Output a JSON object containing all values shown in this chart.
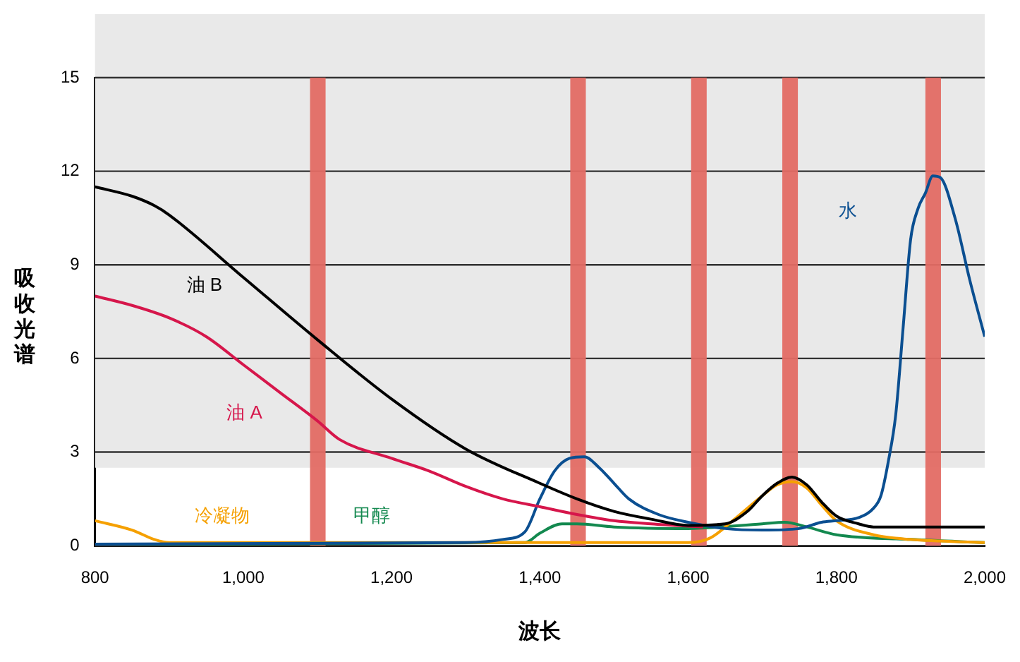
{
  "chart_data": {
    "type": "line",
    "xlabel": "波长",
    "ylabel": "吸收光谱",
    "xlim": [
      800,
      2000
    ],
    "xticks": [
      800,
      {
        "value": 1000,
        "label": "1,000"
      },
      {
        "value": 1200,
        "label": "1,200"
      },
      {
        "value": 1400,
        "label": "1,400"
      },
      {
        "value": 1600,
        "label": "1,600"
      },
      {
        "value": 1800,
        "label": "1,800"
      },
      {
        "value": 2000,
        "label": "2,000"
      }
    ],
    "ylim": [
      0,
      15
    ],
    "yticks": [
      0,
      3,
      6,
      9,
      12,
      15
    ],
    "grid": "y",
    "legend": false,
    "marker": "none",
    "line_style": "solid",
    "series": [
      {
        "name": "油 B",
        "color": "#000000",
        "x": [
          800,
          850,
          880,
          900,
          1000,
          1100,
          1200,
          1300,
          1400,
          1450,
          1500,
          1550,
          1600,
          1650,
          1680,
          1700,
          1720,
          1740,
          1760,
          1780,
          1800,
          1830,
          1850,
          2000
        ],
        "values": [
          11.5,
          11.2,
          10.9,
          10.6,
          8.6,
          6.6,
          4.7,
          3.1,
          2.0,
          1.5,
          1.1,
          0.85,
          0.65,
          0.7,
          1.1,
          1.6,
          2.0,
          2.2,
          1.95,
          1.4,
          0.95,
          0.7,
          0.6,
          0.6
        ]
      },
      {
        "name": "油 A",
        "color": "#d6164b",
        "x": [
          800,
          850,
          900,
          950,
          1000,
          1050,
          1100,
          1130,
          1200,
          1250,
          1300,
          1350,
          1400,
          1450,
          1500,
          1550,
          1620
        ],
        "values": [
          8.0,
          7.7,
          7.3,
          6.7,
          5.8,
          4.9,
          4.0,
          3.4,
          2.8,
          2.4,
          1.9,
          1.5,
          1.25,
          1.0,
          0.8,
          0.7,
          0.6
        ]
      },
      {
        "name": "水",
        "color": "#0b4f91",
        "x": [
          800,
          1300,
          1350,
          1380,
          1400,
          1420,
          1440,
          1460,
          1480,
          1500,
          1520,
          1560,
          1600,
          1650,
          1700,
          1750,
          1780,
          1800,
          1830,
          1850,
          1860,
          1870,
          1880,
          1890,
          1900,
          1910,
          1920,
          1930,
          1940,
          1960,
          1980,
          2000
        ],
        "values": [
          0.05,
          0.1,
          0.2,
          0.45,
          1.5,
          2.4,
          2.8,
          2.85,
          2.5,
          2.0,
          1.5,
          1.0,
          0.75,
          0.55,
          0.5,
          0.55,
          0.75,
          0.8,
          0.9,
          1.2,
          1.6,
          2.7,
          4.2,
          7.0,
          9.8,
          10.8,
          11.3,
          11.85,
          11.8,
          10.5,
          8.5,
          6.7
        ]
      },
      {
        "name": "冷凝物",
        "color": "#f5a000",
        "x": [
          800,
          850,
          880,
          900,
          1600,
          1630,
          1660,
          1700,
          1720,
          1740,
          1760,
          1780,
          1800,
          1850,
          1900,
          2000
        ],
        "values": [
          0.8,
          0.5,
          0.2,
          0.1,
          0.1,
          0.25,
          0.8,
          1.6,
          1.95,
          2.05,
          1.85,
          1.3,
          0.8,
          0.35,
          0.2,
          0.1
        ]
      },
      {
        "name": "甲醇",
        "color": "#13894f",
        "x": [
          800,
          1380,
          1400,
          1430,
          1450,
          1500,
          1600,
          1700,
          1730,
          1760,
          1800,
          1900,
          2000
        ],
        "values": [
          0.05,
          0.1,
          0.4,
          0.7,
          0.7,
          0.6,
          0.55,
          0.7,
          0.75,
          0.6,
          0.35,
          0.2,
          0.1
        ]
      }
    ],
    "bands": [
      {
        "axis": "y",
        "from": 2.5,
        "to": 15,
        "color": "#e9e9e9"
      },
      {
        "axis": "x",
        "from": 1090,
        "to": 1111,
        "color": "#e36b64"
      },
      {
        "axis": "x",
        "from": 1441,
        "to": 1462,
        "color": "#e36b64"
      },
      {
        "axis": "x",
        "from": 1604,
        "to": 1625,
        "color": "#e36b64"
      },
      {
        "axis": "x",
        "from": 1727,
        "to": 1748,
        "color": "#e36b64"
      },
      {
        "axis": "x",
        "from": 1920,
        "to": 1941,
        "color": "#e36b64"
      }
    ]
  }
}
